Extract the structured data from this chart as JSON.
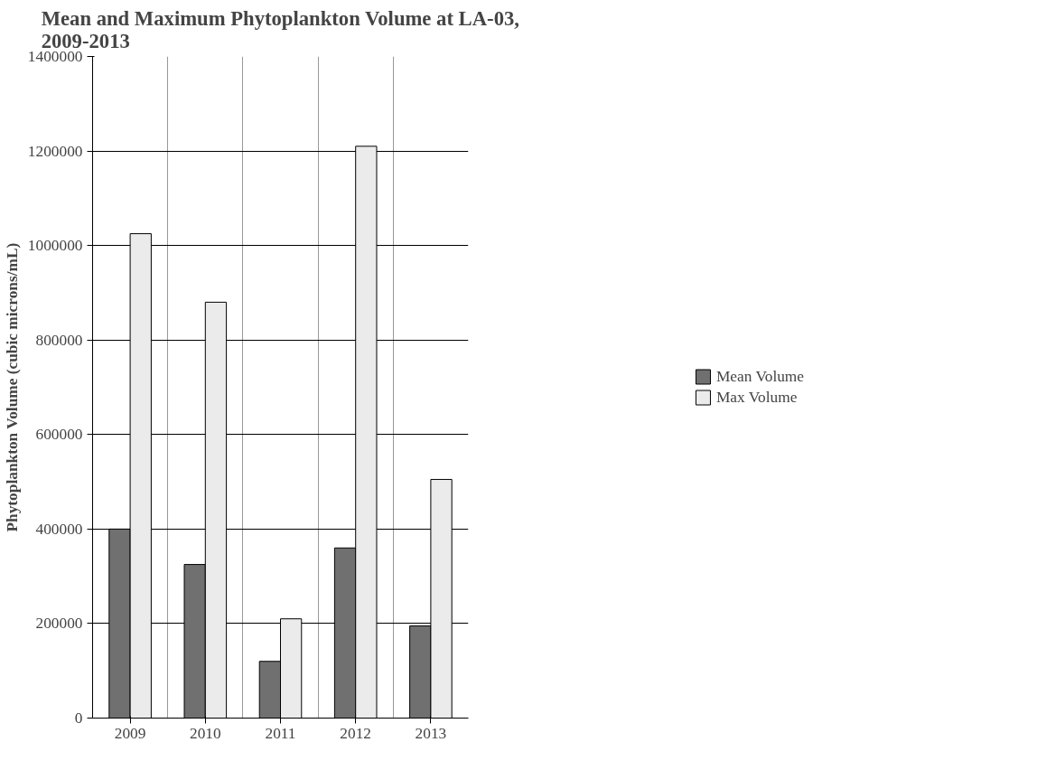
{
  "chart_data": {
    "type": "bar",
    "title": "Mean and Maximum Phytoplankton Volume at LA-03,\n2009-2013",
    "ylabel": "Phytoplankton Volume (cubic microns/mL)",
    "categories": [
      "2009",
      "2010",
      "2011",
      "2012",
      "2013"
    ],
    "series": [
      {
        "name": "Mean Volume",
        "color": "#707070",
        "values": [
          400000,
          325000,
          120000,
          360000,
          195000
        ]
      },
      {
        "name": "Max Volume",
        "color": "#ebebeb",
        "values": [
          1025000,
          880000,
          210000,
          1210000,
          505000
        ]
      }
    ],
    "ylim": [
      0,
      1400000
    ],
    "yticks": [
      0,
      200000,
      400000,
      600000,
      800000,
      1000000,
      1200000,
      1400000
    ],
    "grid": true,
    "legend": "right"
  }
}
